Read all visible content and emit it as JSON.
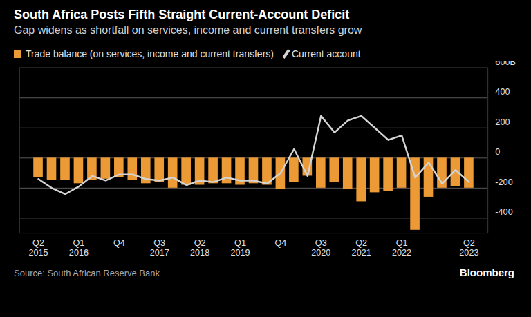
{
  "chart_data": {
    "type": "bar",
    "title": "South Africa Posts Fifth Straight Current-Account Deficit",
    "subtitle": "Gap widens as shortfall on services, income and current transfers grow",
    "source": "Source: South African Reserve Bank",
    "brand": "Bloomberg",
    "categories": [
      "Q2\n2015",
      null,
      null,
      "Q1\n2016",
      null,
      null,
      "Q4",
      null,
      null,
      "Q3\n2017",
      null,
      null,
      "Q2\n2018",
      null,
      null,
      "Q1\n2019",
      null,
      null,
      "Q4",
      null,
      null,
      "Q3\n2020",
      null,
      null,
      "Q2\n2021",
      null,
      null,
      "Q1\n2022",
      null,
      null,
      null,
      null,
      "Q2\n2023"
    ],
    "series": [
      {
        "name": "Trade balance (on services, income and current transfers)",
        "type": "bar",
        "color": "#eb9a35",
        "values": [
          -130,
          -150,
          -150,
          -170,
          -150,
          -140,
          -130,
          -150,
          -170,
          -160,
          -200,
          -180,
          -180,
          -170,
          -170,
          -180,
          -170,
          -180,
          -210,
          -160,
          -120,
          -200,
          -160,
          -210,
          -290,
          -230,
          -220,
          -200,
          -480,
          -260,
          -200,
          -190,
          -200
        ]
      },
      {
        "name": "Current account",
        "type": "line",
        "color": "#d4d4d4",
        "values": [
          -140,
          -200,
          -240,
          -190,
          -120,
          -150,
          -110,
          -110,
          -140,
          -150,
          -130,
          -180,
          -150,
          -160,
          -130,
          -150,
          -150,
          -170,
          -100,
          60,
          -120,
          280,
          170,
          250,
          280,
          200,
          120,
          150,
          -130,
          -30,
          -170,
          -80,
          -160
        ]
      }
    ],
    "ylim": [
      -500,
      600
    ],
    "yticks": [
      -400,
      -200,
      0,
      200,
      400,
      {
        "value": 600,
        "label": "600B"
      }
    ],
    "grid": true,
    "legend": "top-left"
  }
}
